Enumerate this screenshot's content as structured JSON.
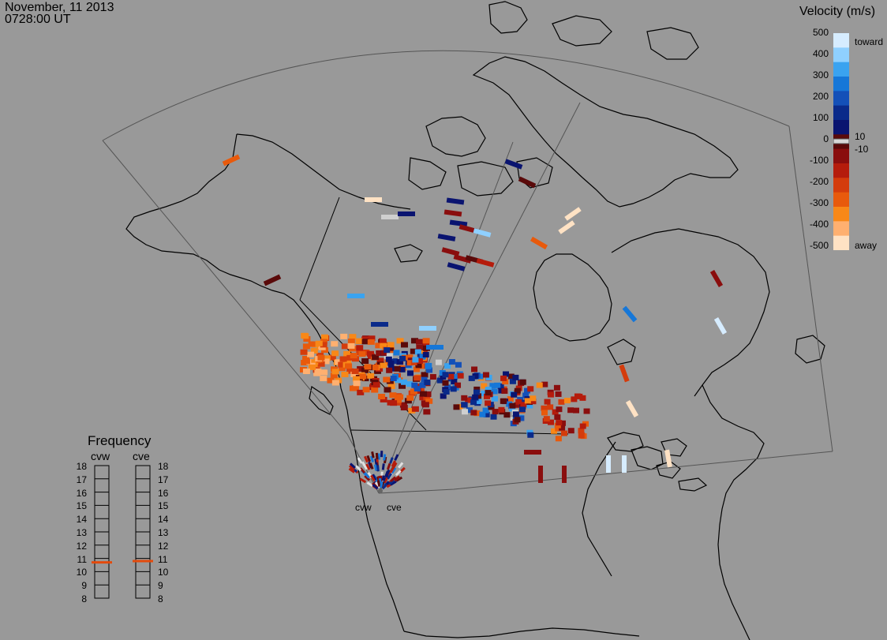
{
  "header": {
    "date": "November, 11 2013",
    "time": "0728:00 UT"
  },
  "velocity_scale": {
    "title": "Velocity (m/s)",
    "ticks": [
      "500",
      "400",
      "300",
      "200",
      "100",
      "0",
      "-100",
      "-200",
      "-300",
      "-400",
      "-500"
    ],
    "zero_band_labels": [
      "10",
      "-10"
    ],
    "toward_label": "toward",
    "away_label": "away",
    "colors": [
      "#d6ecff",
      "#8fd0ff",
      "#3aa3f0",
      "#1677d8",
      "#1450b8",
      "#0a2a8a",
      "#0a1470",
      "#5a0a0a",
      "#8a0e0e",
      "#b51c0c",
      "#d43c0c",
      "#e85a0c",
      "#f88818",
      "#ffb070",
      "#ffe2c4"
    ]
  },
  "frequency": {
    "title": "Frequency",
    "radars": [
      "cvw",
      "cve"
    ],
    "ticks": [
      "18",
      "17",
      "16",
      "15",
      "14",
      "13",
      "12",
      "11",
      "10",
      "9",
      "8"
    ],
    "cvw_mhz": 10.7,
    "cve_mhz": 10.8
  },
  "radar_labels": [
    "cvw",
    "cve"
  ],
  "marker_color": "#e34a0c"
}
